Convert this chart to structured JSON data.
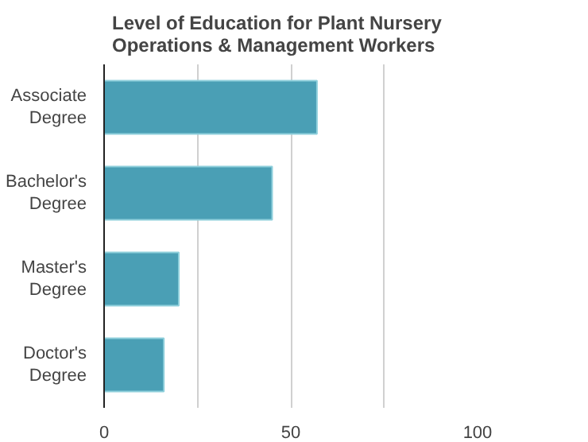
{
  "chart_data": {
    "type": "bar",
    "orientation": "horizontal",
    "title": "Level of Education for Plant Nursery\nOperations & Management Workers",
    "categories": [
      "Associate\nDegree",
      "Bachelor's\nDegree",
      "Master's\nDegree",
      "Doctor's\nDegree"
    ],
    "values": [
      57,
      45,
      20,
      16
    ],
    "color": "#4a9fb5",
    "xlim": [
      0,
      100
    ],
    "xticks": [
      0,
      {
        "value": 25,
        "label": null
      },
      50,
      {
        "value": 75,
        "label": null
      },
      100
    ],
    "grid": "x"
  }
}
